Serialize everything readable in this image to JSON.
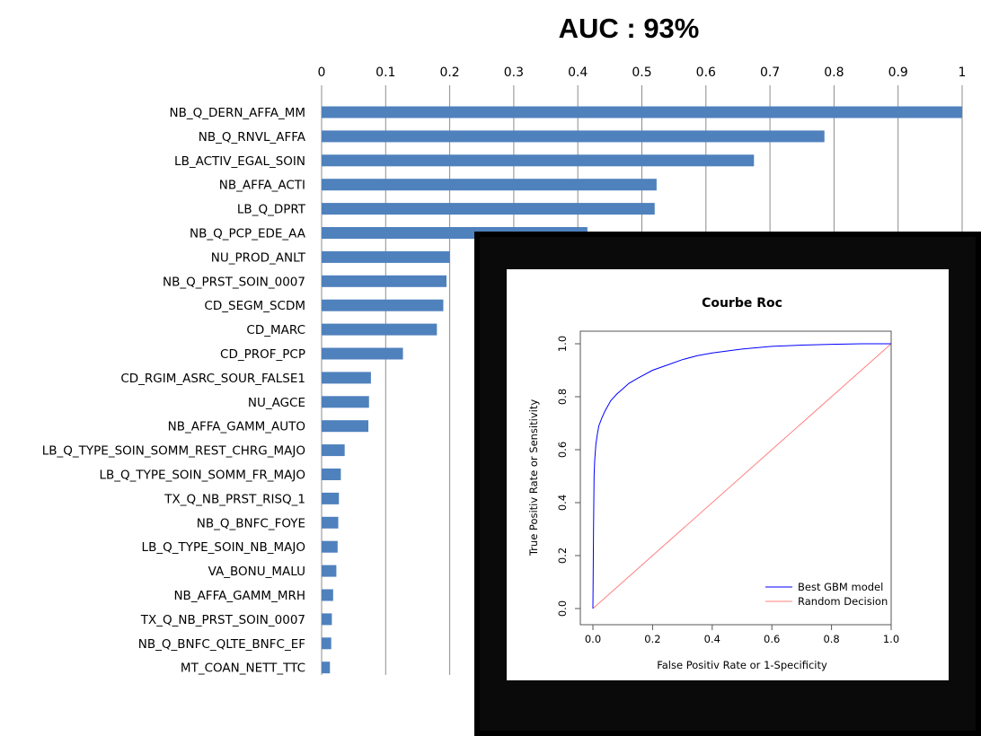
{
  "chart_data": [
    {
      "type": "bar",
      "orientation": "horizontal",
      "title": "AUC : 93%",
      "xlim": [
        0,
        1
      ],
      "xticks": [
        "0",
        "0.1",
        "0.2",
        "0.3",
        "0.4",
        "0.5",
        "0.6",
        "0.7",
        "0.8",
        "0.9",
        "1"
      ],
      "grid": true,
      "bar_color": "#4f81bd",
      "categories": [
        "NB_Q_DERN_AFFA_MM",
        "NB_Q_RNVL_AFFA",
        "LB_ACTIV_EGAL_SOIN",
        "NB_AFFA_ACTI",
        "LB_Q_DPRT",
        "NB_Q_PCP_EDE_AA",
        "NU_PROD_ANLT",
        "NB_Q_PRST_SOIN_0007",
        "CD_SEGM_SCDM",
        "CD_MARC",
        "CD_PROF_PCP",
        "CD_RGIM_ASRC_SOUR_FALSE1",
        "NU_AGCE",
        "NB_AFFA_GAMM_AUTO",
        "LB_Q_TYPE_SOIN_SOMM_REST_CHRG_MAJO",
        "LB_Q_TYPE_SOIN_SOMM_FR_MAJO",
        "TX_Q_NB_PRST_RISQ_1",
        "NB_Q_BNFC_FOYE",
        "LB_Q_TYPE_SOIN_NB_MAJO",
        "VA_BONU_MALU",
        "NB_AFFA_GAMM_MRH",
        "TX_Q_NB_PRST_SOIN_0007",
        "NB_Q_BNFC_QLTE_BNFC_EF",
        "MT_COAN_NETT_TTC"
      ],
      "values": [
        1.0,
        0.785,
        0.675,
        0.523,
        0.52,
        0.415,
        0.2,
        0.195,
        0.19,
        0.18,
        0.127,
        0.077,
        0.074,
        0.073,
        0.036,
        0.03,
        0.027,
        0.026,
        0.025,
        0.023,
        0.018,
        0.016,
        0.015,
        0.013
      ]
    },
    {
      "type": "line",
      "title": "Courbe Roc",
      "xlabel": "False Positiv Rate or 1-Specificity",
      "ylabel": "True Positiv Rate or Sensitivity",
      "xlim": [
        0,
        1
      ],
      "ylim": [
        0,
        1
      ],
      "xticks": [
        "0.0",
        "0.2",
        "0.4",
        "0.6",
        "0.8",
        "1.0"
      ],
      "yticks": [
        "0.0",
        "0.2",
        "0.4",
        "0.6",
        "0.8",
        "1.0"
      ],
      "legend": "bottom-right",
      "series": [
        {
          "name": "Best GBM model",
          "color": "#0000ff",
          "x": [
            0,
            0.002,
            0.004,
            0.006,
            0.01,
            0.015,
            0.02,
            0.03,
            0.04,
            0.05,
            0.06,
            0.08,
            0.1,
            0.12,
            0.15,
            0.2,
            0.25,
            0.3,
            0.35,
            0.4,
            0.5,
            0.6,
            0.7,
            0.8,
            0.9,
            1.0
          ],
          "y": [
            0,
            0.3,
            0.5,
            0.56,
            0.62,
            0.66,
            0.69,
            0.72,
            0.745,
            0.765,
            0.785,
            0.81,
            0.83,
            0.85,
            0.87,
            0.9,
            0.92,
            0.94,
            0.955,
            0.965,
            0.98,
            0.99,
            0.995,
            0.998,
            1.0,
            1.0
          ]
        },
        {
          "name": "Random Decision",
          "color": "#ff8080",
          "x": [
            0,
            1
          ],
          "y": [
            0,
            1
          ]
        }
      ]
    }
  ]
}
